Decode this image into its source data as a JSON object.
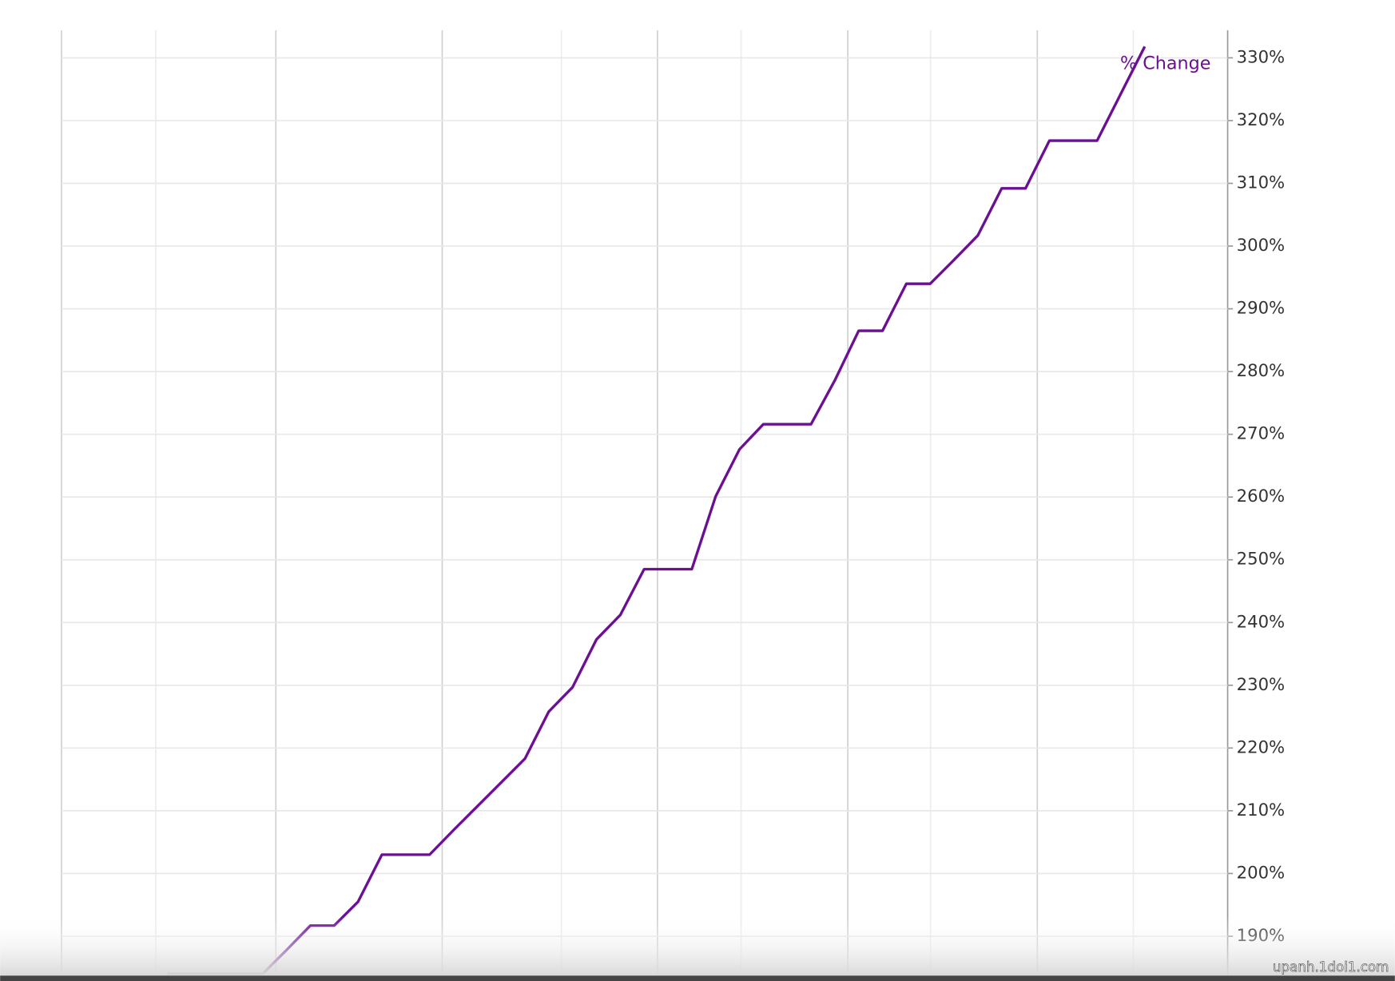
{
  "chart_data": {
    "type": "line",
    "categories": [
      null,
      null,
      null,
      null,
      null,
      null,
      null,
      null,
      null,
      null,
      null,
      null,
      null,
      null,
      null,
      null,
      null,
      null,
      null,
      null,
      null,
      null,
      null,
      null,
      null,
      null,
      null,
      null,
      null,
      null,
      null,
      null,
      null,
      null,
      null,
      null,
      null,
      null,
      null,
      null,
      null,
      null
    ],
    "series": [
      {
        "name": "% Change",
        "color": "#6b0f93",
        "values": [
          184.0,
          184.0,
          184.0,
          184.0,
          184.0,
          187.8,
          191.7,
          191.7,
          195.5,
          203.0,
          203.0,
          203.0,
          206.9,
          210.7,
          214.5,
          218.3,
          225.8,
          229.7,
          237.3,
          241.2,
          248.5,
          248.5,
          248.5,
          260.1,
          267.6,
          271.6,
          271.6,
          271.6,
          278.6,
          286.5,
          286.5,
          294.0,
          294.0,
          297.8,
          301.7,
          309.2,
          309.2,
          316.8,
          316.8,
          316.8,
          324.3,
          331.8
        ]
      }
    ],
    "ylim": [
      184.0,
      334.4
    ],
    "yticks": [
      {
        "value": 190,
        "label": "190%"
      },
      {
        "value": 200,
        "label": "200%"
      },
      {
        "value": 210,
        "label": "210%"
      },
      {
        "value": 220,
        "label": "220%"
      },
      {
        "value": 230,
        "label": "230%"
      },
      {
        "value": 240,
        "label": "240%"
      },
      {
        "value": 250,
        "label": "250%"
      },
      {
        "value": 260,
        "label": "260%"
      },
      {
        "value": 270,
        "label": "270%"
      },
      {
        "value": 280,
        "label": "280%"
      },
      {
        "value": 290,
        "label": "290%"
      },
      {
        "value": 300,
        "label": "300%"
      },
      {
        "value": 310,
        "label": "310%"
      },
      {
        "value": 320,
        "label": "320%"
      },
      {
        "value": 330,
        "label": "330%"
      }
    ],
    "grid": true,
    "y_axis_side": "right",
    "watermark": "upanh.1doi1.com"
  }
}
